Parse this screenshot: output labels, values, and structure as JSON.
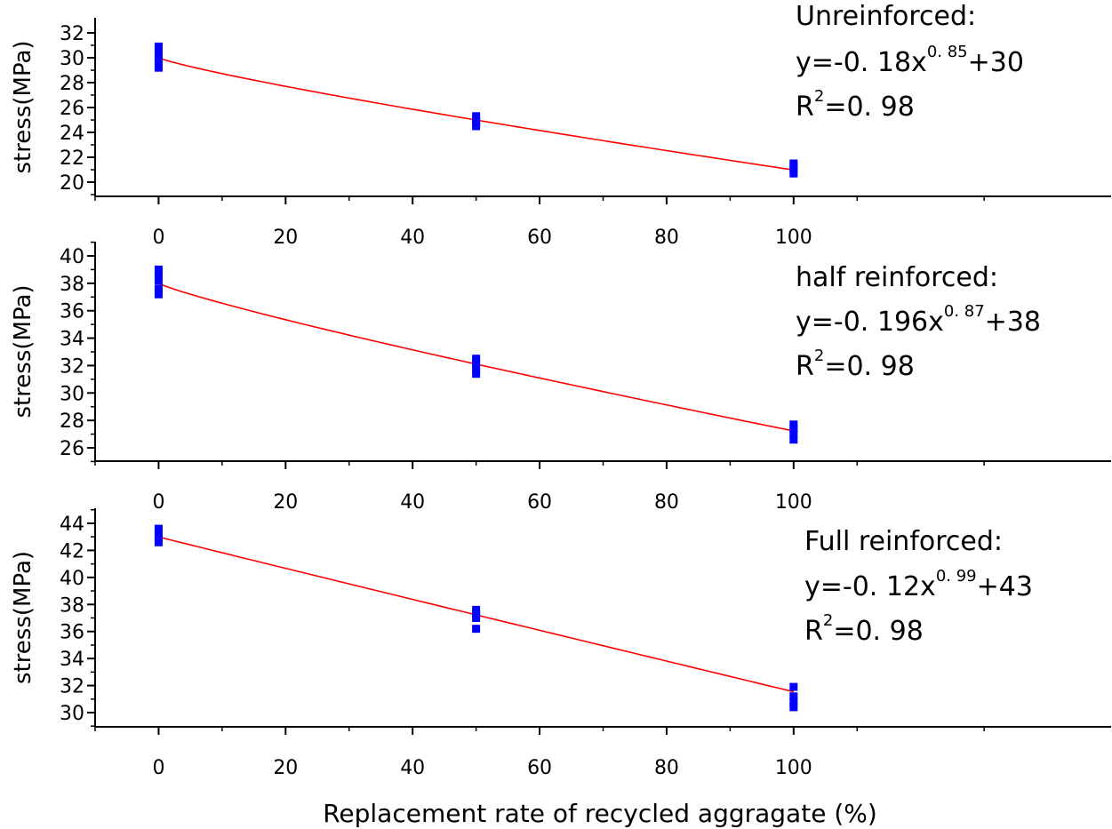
{
  "chart_data": [
    {
      "type": "scatter",
      "xlabel": "",
      "ylabel": "stress(MPa)",
      "xlim": [
        -10,
        150
      ],
      "ylim": [
        19,
        32
      ],
      "xticks": [
        "0",
        "20",
        "40",
        "60",
        "80",
        "100"
      ],
      "yticks": [
        "20",
        "22",
        "24",
        "26",
        "28",
        "30",
        "32"
      ],
      "grid": false,
      "points": [
        {
          "x": 0,
          "y": 29.2
        },
        {
          "x": 0,
          "y": 29.6
        },
        {
          "x": 0,
          "y": 30.0
        },
        {
          "x": 0,
          "y": 30.4
        },
        {
          "x": 0,
          "y": 30.9
        },
        {
          "x": 50,
          "y": 24.5
        },
        {
          "x": 50,
          "y": 24.8
        },
        {
          "x": 50,
          "y": 25.0
        },
        {
          "x": 50,
          "y": 25.3
        },
        {
          "x": 100,
          "y": 20.7
        },
        {
          "x": 100,
          "y": 21.0
        },
        {
          "x": 100,
          "y": 21.3
        },
        {
          "x": 100,
          "y": 21.5
        }
      ],
      "fit": {
        "a": 0.18,
        "b": 0.85,
        "c": 30,
        "x_range": [
          0,
          100
        ]
      },
      "annotation": {
        "title": "Unreinforced:",
        "eq_main": "y=-0. 18x",
        "eq_exp": "0. 85",
        "eq_tail": "+30",
        "r2_base": "R",
        "r2_exp": "2",
        "r2_tail": "=0. 98"
      }
    },
    {
      "type": "scatter",
      "xlabel": "",
      "ylabel": "stress(MPa)",
      "xlim": [
        -10,
        150
      ],
      "ylim": [
        25,
        41
      ],
      "xticks": [
        "0",
        "20",
        "40",
        "60",
        "80",
        "100"
      ],
      "yticks": [
        "26",
        "28",
        "30",
        "32",
        "34",
        "36",
        "38",
        "40"
      ],
      "grid": false,
      "points": [
        {
          "x": 0,
          "y": 37.2
        },
        {
          "x": 0,
          "y": 37.6
        },
        {
          "x": 0,
          "y": 38.2
        },
        {
          "x": 0,
          "y": 38.6
        },
        {
          "x": 0,
          "y": 39.0
        },
        {
          "x": 50,
          "y": 31.4
        },
        {
          "x": 50,
          "y": 31.8
        },
        {
          "x": 50,
          "y": 32.2
        },
        {
          "x": 50,
          "y": 32.5
        },
        {
          "x": 100,
          "y": 26.6
        },
        {
          "x": 100,
          "y": 27.0
        },
        {
          "x": 100,
          "y": 27.4
        },
        {
          "x": 100,
          "y": 27.7
        }
      ],
      "fit": {
        "a": 0.196,
        "b": 0.87,
        "c": 38,
        "x_range": [
          0,
          100
        ]
      },
      "annotation": {
        "title": "half reinforced:",
        "eq_main": "y=-0. 196x",
        "eq_exp": "0. 87",
        "eq_tail": "+38",
        "r2_base": "R",
        "r2_exp": "2",
        "r2_tail": "=0. 98"
      }
    },
    {
      "type": "scatter",
      "xlabel": "Replacement rate of recycled aggragate (%)",
      "ylabel": "stress(MPa)",
      "xlim": [
        -10,
        150
      ],
      "ylim": [
        29,
        45
      ],
      "xticks": [
        "0",
        "20",
        "40",
        "60",
        "80",
        "100"
      ],
      "yticks": [
        "30",
        "32",
        "34",
        "36",
        "38",
        "40",
        "42",
        "44"
      ],
      "grid": false,
      "points": [
        {
          "x": 0,
          "y": 42.6
        },
        {
          "x": 0,
          "y": 43.0
        },
        {
          "x": 0,
          "y": 43.3
        },
        {
          "x": 0,
          "y": 43.6
        },
        {
          "x": 50,
          "y": 36.2
        },
        {
          "x": 50,
          "y": 37.0
        },
        {
          "x": 50,
          "y": 37.3
        },
        {
          "x": 50,
          "y": 37.6
        },
        {
          "x": 100,
          "y": 30.4
        },
        {
          "x": 100,
          "y": 30.8
        },
        {
          "x": 100,
          "y": 31.2
        },
        {
          "x": 100,
          "y": 31.9
        }
      ],
      "fit": {
        "a": 0.12,
        "b": 0.99,
        "c": 43,
        "x_range": [
          0,
          100
        ]
      },
      "annotation": {
        "title": "Full reinforced:",
        "eq_main": "y=-0. 12x",
        "eq_exp": "0. 99",
        "eq_tail": "+43",
        "r2_base": "R",
        "r2_exp": "2",
        "r2_tail": "=0. 98"
      }
    }
  ],
  "colors": {
    "points": "#0000ff",
    "fit": "#ff0000",
    "axis": "#000000"
  }
}
